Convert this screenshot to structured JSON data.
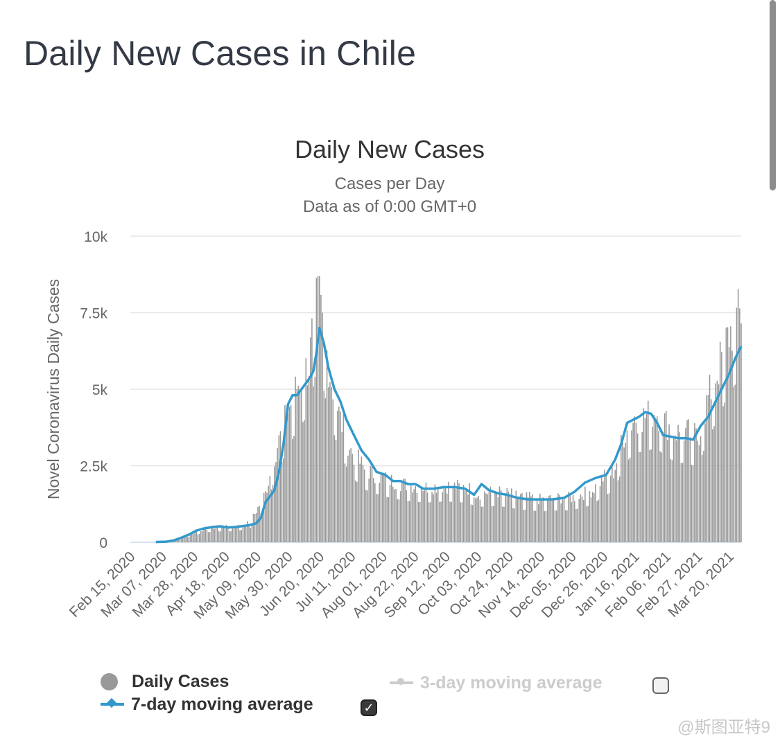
{
  "page": {
    "title": "Daily New Cases in Chile"
  },
  "watermark": "@斯图亚特9",
  "legend": {
    "daily_cases": "Daily Cases",
    "seven_day": "7-day moving average",
    "three_day": "3-day moving average",
    "seven_day_checked": true,
    "three_day_checked": false
  },
  "colors": {
    "bars": "#999999",
    "line": "#3399cc",
    "grid": "#e6e6e6",
    "baseline": "#ccd6eb"
  },
  "chart_data": {
    "type": "bar",
    "title": "Daily New Cases",
    "subtitle": "Cases per Day",
    "subtitle2": "Data as of 0:00 GMT+0",
    "ylabel": "Novel Coronavirus Daily Cases",
    "ylim": [
      0,
      10000
    ],
    "yticks": [
      "0",
      "2.5k",
      "5k",
      "7.5k",
      "10k"
    ],
    "ytick_values": [
      0,
      2500,
      5000,
      7500,
      10000
    ],
    "x_start": "2020-02-15",
    "x_end": "2021-03-28",
    "xticks": [
      "Feb 15, 2020",
      "Mar 07, 2020",
      "Mar 28, 2020",
      "Apr 18, 2020",
      "May 09, 2020",
      "May 30, 2020",
      "Jun 20, 2020",
      "Jul 11, 2020",
      "Aug 01, 2020",
      "Aug 22, 2020",
      "Sep 12, 2020",
      "Oct 03, 2020",
      "Oct 24, 2020",
      "Nov 14, 2020",
      "Dec 05, 2020",
      "Dec 26, 2020",
      "Jan 16, 2021",
      "Feb 06, 2021",
      "Feb 27, 2021",
      "Mar 20, 2021"
    ],
    "grid": true,
    "series": [
      {
        "name": "Daily Cases",
        "type": "bar",
        "x": [
          "2020-03-03",
          "2020-03-15",
          "2020-03-25",
          "2020-04-05",
          "2020-04-15",
          "2020-04-25",
          "2020-05-05",
          "2020-05-15",
          "2020-05-22",
          "2020-05-30",
          "2020-06-06",
          "2020-06-13",
          "2020-06-17",
          "2020-06-20",
          "2020-06-27",
          "2020-07-04",
          "2020-07-11",
          "2020-07-20",
          "2020-08-01",
          "2020-08-15",
          "2020-08-29",
          "2020-09-12",
          "2020-09-26",
          "2020-10-03",
          "2020-10-17",
          "2020-10-31",
          "2020-11-14",
          "2020-11-28",
          "2020-12-05",
          "2020-12-19",
          "2020-12-26",
          "2021-01-02",
          "2021-01-09",
          "2021-01-16",
          "2021-01-23",
          "2021-01-30",
          "2021-02-06",
          "2021-02-13",
          "2021-02-20",
          "2021-02-27",
          "2021-03-06",
          "2021-03-13",
          "2021-03-20",
          "2021-03-28"
        ],
        "values": [
          5,
          50,
          250,
          450,
          500,
          500,
          650,
          1600,
          3000,
          4300,
          5200,
          5800,
          7500,
          7900,
          5500,
          4000,
          3000,
          2400,
          2100,
          1900,
          1800,
          1850,
          1800,
          1600,
          1650,
          1500,
          1400,
          1450,
          1450,
          1700,
          2100,
          2300,
          3500,
          4100,
          4100,
          4300,
          3900,
          3600,
          3600,
          3400,
          4700,
          5700,
          6800,
          7500
        ]
      },
      {
        "name": "7-day moving average",
        "type": "line",
        "x": [
          "2020-03-03",
          "2020-03-10",
          "2020-03-15",
          "2020-03-20",
          "2020-03-25",
          "2020-03-30",
          "2020-04-04",
          "2020-04-10",
          "2020-04-15",
          "2020-04-20",
          "2020-04-27",
          "2020-05-03",
          "2020-05-06",
          "2020-05-09",
          "2020-05-12",
          "2020-05-15",
          "2020-05-18",
          "2020-05-21",
          "2020-05-24",
          "2020-05-27",
          "2020-05-30",
          "2020-06-02",
          "2020-06-05",
          "2020-06-08",
          "2020-06-11",
          "2020-06-14",
          "2020-06-16",
          "2020-06-18",
          "2020-06-20",
          "2020-06-23",
          "2020-06-26",
          "2020-06-30",
          "2020-07-04",
          "2020-07-08",
          "2020-07-13",
          "2020-07-18",
          "2020-07-23",
          "2020-07-28",
          "2020-08-03",
          "2020-08-08",
          "2020-08-13",
          "2020-08-18",
          "2020-08-23",
          "2020-08-28",
          "2020-09-04",
          "2020-09-11",
          "2020-09-18",
          "2020-09-25",
          "2020-10-01",
          "2020-10-06",
          "2020-10-11",
          "2020-10-17",
          "2020-10-23",
          "2020-10-30",
          "2020-11-06",
          "2020-11-14",
          "2020-11-22",
          "2020-11-30",
          "2020-12-07",
          "2020-12-14",
          "2020-12-21",
          "2020-12-28",
          "2021-01-03",
          "2021-01-07",
          "2021-01-11",
          "2021-01-15",
          "2021-01-19",
          "2021-01-23",
          "2021-01-27",
          "2021-01-31",
          "2021-02-04",
          "2021-02-09",
          "2021-02-14",
          "2021-02-19",
          "2021-02-24",
          "2021-03-01",
          "2021-03-06",
          "2021-03-11",
          "2021-03-16",
          "2021-03-20",
          "2021-03-24",
          "2021-03-28"
        ],
        "values": [
          10,
          20,
          60,
          150,
          250,
          380,
          450,
          500,
          520,
          480,
          510,
          550,
          580,
          620,
          800,
          1300,
          1500,
          1700,
          2300,
          3200,
          4500,
          4800,
          4800,
          5000,
          5200,
          5400,
          5600,
          6200,
          7000,
          6500,
          5700,
          5000,
          4600,
          4000,
          3500,
          3000,
          2700,
          2300,
          2200,
          2000,
          2000,
          1900,
          1900,
          1750,
          1750,
          1800,
          1800,
          1750,
          1550,
          1900,
          1700,
          1600,
          1550,
          1450,
          1400,
          1400,
          1400,
          1450,
          1650,
          1950,
          2100,
          2200,
          2700,
          3200,
          3900,
          4000,
          4100,
          4250,
          4200,
          3900,
          3500,
          3450,
          3400,
          3400,
          3350,
          3800,
          4100,
          4600,
          5100,
          5500,
          6000,
          6400
        ]
      }
    ]
  }
}
